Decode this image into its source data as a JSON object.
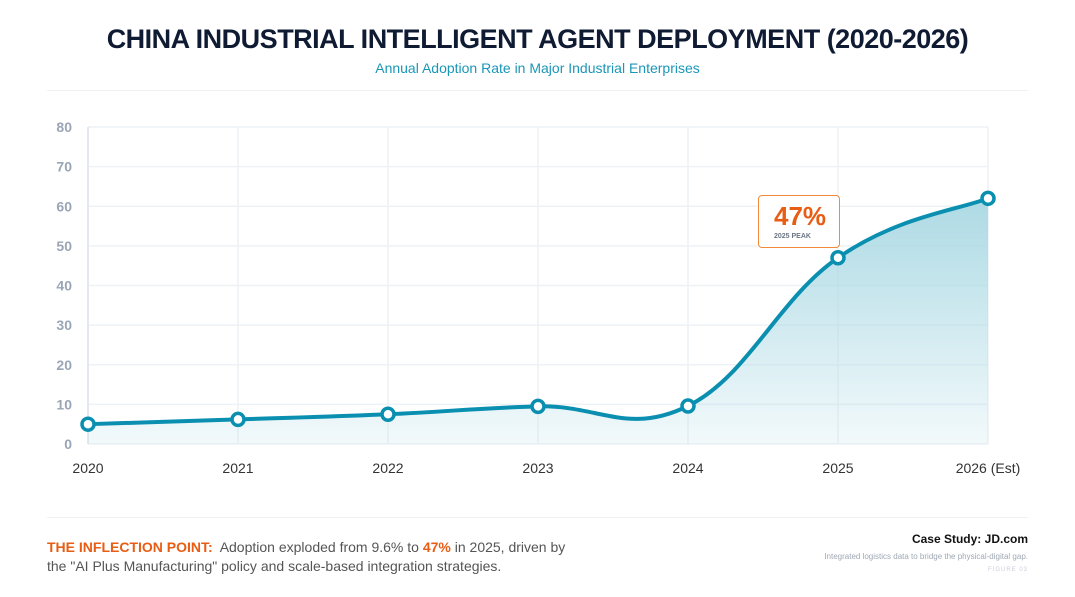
{
  "chart_data": {
    "type": "area",
    "title": "CHINA INDUSTRIAL INTELLIGENT AGENT DEPLOYMENT (2020-2026)",
    "subtitle": "Annual Adoption Rate in Major Industrial Enterprises",
    "categories": [
      "2020",
      "2021",
      "2022",
      "2023",
      "2024",
      "2025",
      "2026 (Est)"
    ],
    "values": [
      5,
      6.2,
      7.5,
      9.5,
      9.6,
      47,
      62
    ],
    "ylim": [
      0,
      80
    ],
    "yticks": [
      0,
      10,
      20,
      30,
      40,
      50,
      60,
      70,
      80
    ],
    "grid": true,
    "colors": {
      "line": "#0a8fb0",
      "fill": "#a9d8e3",
      "accent": "#e85d14"
    },
    "annotation": {
      "value": "47%",
      "label": "2025 PEAK"
    }
  },
  "footer": {
    "lead": "THE INFLECTION POINT:",
    "text1": "Adoption exploded from 9.6% to",
    "highlight": "47%",
    "text2": "in 2025, driven by the \"AI Plus Manufacturing\" policy and scale-based integration strategies.",
    "case_title": "Case Study: JD.com",
    "case_text": "Integrated logistics data to bridge the physical-digital gap.",
    "figure": "FIGURE 03"
  }
}
